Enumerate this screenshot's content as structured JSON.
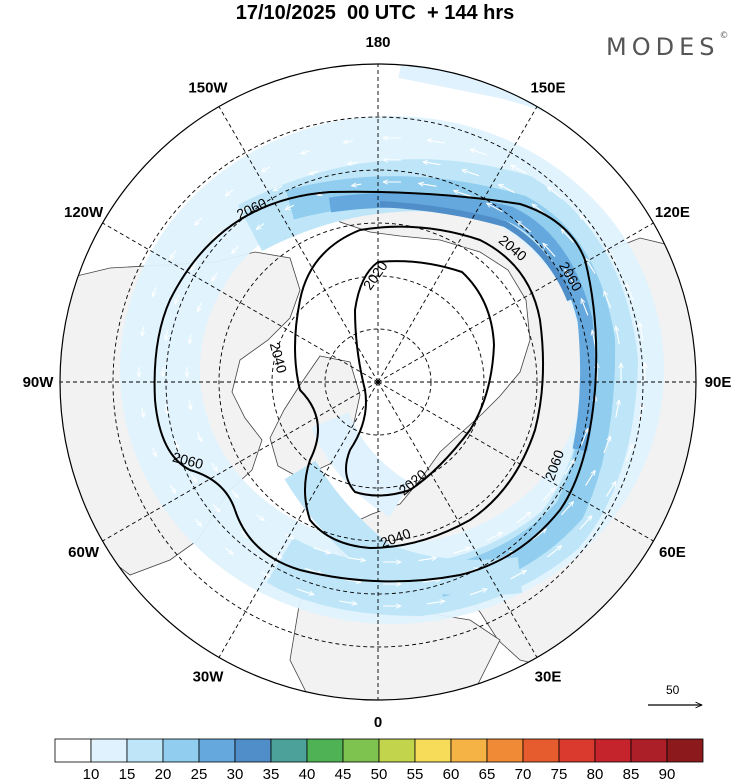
{
  "title": "17/10/2025  00 UTC  + 144 hrs",
  "brand": "MODES",
  "brand_mark": "©",
  "meridian_labels": [
    {
      "text": "180",
      "lon": 180
    },
    {
      "text": "150E",
      "lon": 150
    },
    {
      "text": "120E",
      "lon": 120
    },
    {
      "text": "90E",
      "lon": 90
    },
    {
      "text": "60E",
      "lon": 60
    },
    {
      "text": "30E",
      "lon": 30
    },
    {
      "text": "0",
      "lon": 0
    },
    {
      "text": "30W",
      "lon": -30
    },
    {
      "text": "60W",
      "lon": -60
    },
    {
      "text": "90W",
      "lon": -90
    },
    {
      "text": "120W",
      "lon": -120
    },
    {
      "text": "150W",
      "lon": -150
    }
  ],
  "contours": [
    {
      "value": "2020",
      "labels": 2
    },
    {
      "value": "2040",
      "labels": 3
    },
    {
      "value": "2060",
      "labels": 4
    }
  ],
  "wind_reference": {
    "value": "50"
  },
  "colorbar": {
    "colors": [
      "#ffffff",
      "#dff2fd",
      "#bfe6f8",
      "#91cdee",
      "#64a8de",
      "#4f8ec8",
      "#4ca29a",
      "#4fb356",
      "#7ec24f",
      "#c2d44c",
      "#f7dc5a",
      "#f5b245",
      "#f08a36",
      "#e65c2f",
      "#d93a2d",
      "#c5242c",
      "#ad1f28",
      "#8c1a1c"
    ],
    "labels": [
      "10",
      "15",
      "20",
      "25",
      "30",
      "35",
      "40",
      "45",
      "50",
      "55",
      "60",
      "65",
      "70",
      "75",
      "80",
      "85",
      "90"
    ]
  }
}
